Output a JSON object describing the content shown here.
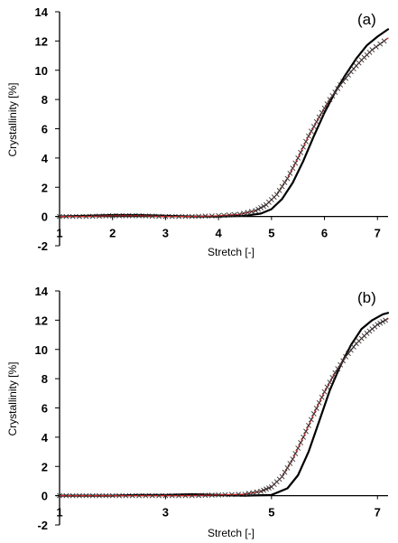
{
  "chart_data": [
    {
      "type": "line",
      "panel_label": "(a)",
      "xlabel": "Stretch [-]",
      "ylabel": "Crystallinity [%]",
      "xlim": [
        1,
        7.2
      ],
      "ylim": [
        -2,
        14
      ],
      "xticks": [
        "1",
        "2",
        "3",
        "4",
        "5",
        "6",
        "7"
      ],
      "yticks": [
        "-2",
        "0",
        "2",
        "4",
        "6",
        "8",
        "10",
        "12",
        "14"
      ],
      "grid": false,
      "series": [
        {
          "style": "black solid line",
          "color": "#000000",
          "x": [
            1.0,
            1.5,
            2.0,
            2.5,
            3.0,
            3.5,
            4.0,
            4.5,
            4.8,
            5.0,
            5.2,
            5.4,
            5.6,
            5.8,
            6.0,
            6.2,
            6.4,
            6.6,
            6.8,
            7.0,
            7.2
          ],
          "y": [
            0.0,
            0.05,
            0.1,
            0.1,
            0.05,
            0.0,
            0.0,
            0.05,
            0.2,
            0.5,
            1.2,
            2.3,
            3.8,
            5.5,
            7.1,
            8.5,
            9.7,
            10.8,
            11.7,
            12.3,
            12.8
          ]
        },
        {
          "style": "red line with black x markers",
          "color": "#cc2222",
          "marker_color": "#333333",
          "x": [
            1.0,
            1.5,
            2.0,
            2.5,
            3.0,
            3.5,
            4.0,
            4.4,
            4.7,
            4.9,
            5.1,
            5.3,
            5.5,
            5.7,
            5.9,
            6.1,
            6.3,
            6.5,
            6.7,
            6.9,
            7.2
          ],
          "y": [
            0.0,
            0.0,
            0.05,
            0.05,
            0.0,
            0.0,
            0.05,
            0.15,
            0.4,
            0.8,
            1.5,
            2.6,
            4.0,
            5.5,
            6.8,
            8.0,
            9.0,
            9.9,
            10.7,
            11.4,
            12.2
          ]
        }
      ]
    },
    {
      "type": "line",
      "panel_label": "(b)",
      "xlabel": "Stretch [-]",
      "ylabel": "Crystallinity [%]",
      "xlim": [
        1,
        7.2
      ],
      "ylim": [
        -2,
        14
      ],
      "xticks": [
        "1",
        "3",
        "5",
        "7"
      ],
      "yticks": [
        "-2",
        "0",
        "2",
        "4",
        "6",
        "8",
        "10",
        "12",
        "14"
      ],
      "grid": false,
      "series": [
        {
          "style": "black solid line",
          "color": "#000000",
          "x": [
            1.0,
            1.5,
            2.0,
            2.5,
            3.0,
            3.5,
            4.0,
            4.5,
            5.0,
            5.3,
            5.5,
            5.7,
            5.9,
            6.1,
            6.3,
            6.5,
            6.7,
            6.9,
            7.1,
            7.2
          ],
          "y": [
            0.0,
            0.0,
            0.0,
            0.05,
            0.05,
            0.1,
            0.05,
            0.0,
            0.05,
            0.5,
            1.4,
            3.0,
            5.1,
            7.2,
            8.9,
            10.3,
            11.4,
            12.0,
            12.4,
            12.5
          ]
        },
        {
          "style": "red line with black x markers",
          "color": "#cc2222",
          "marker_color": "#333333",
          "x": [
            1.0,
            1.5,
            2.0,
            2.5,
            3.0,
            3.5,
            4.0,
            4.5,
            4.8,
            5.0,
            5.2,
            5.4,
            5.6,
            5.8,
            6.0,
            6.2,
            6.4,
            6.6,
            6.8,
            7.0,
            7.2
          ],
          "y": [
            0.0,
            0.0,
            0.0,
            0.0,
            0.0,
            0.0,
            0.05,
            0.1,
            0.3,
            0.6,
            1.3,
            2.5,
            4.0,
            5.6,
            7.1,
            8.4,
            9.5,
            10.4,
            11.1,
            11.7,
            12.1
          ]
        }
      ]
    }
  ]
}
